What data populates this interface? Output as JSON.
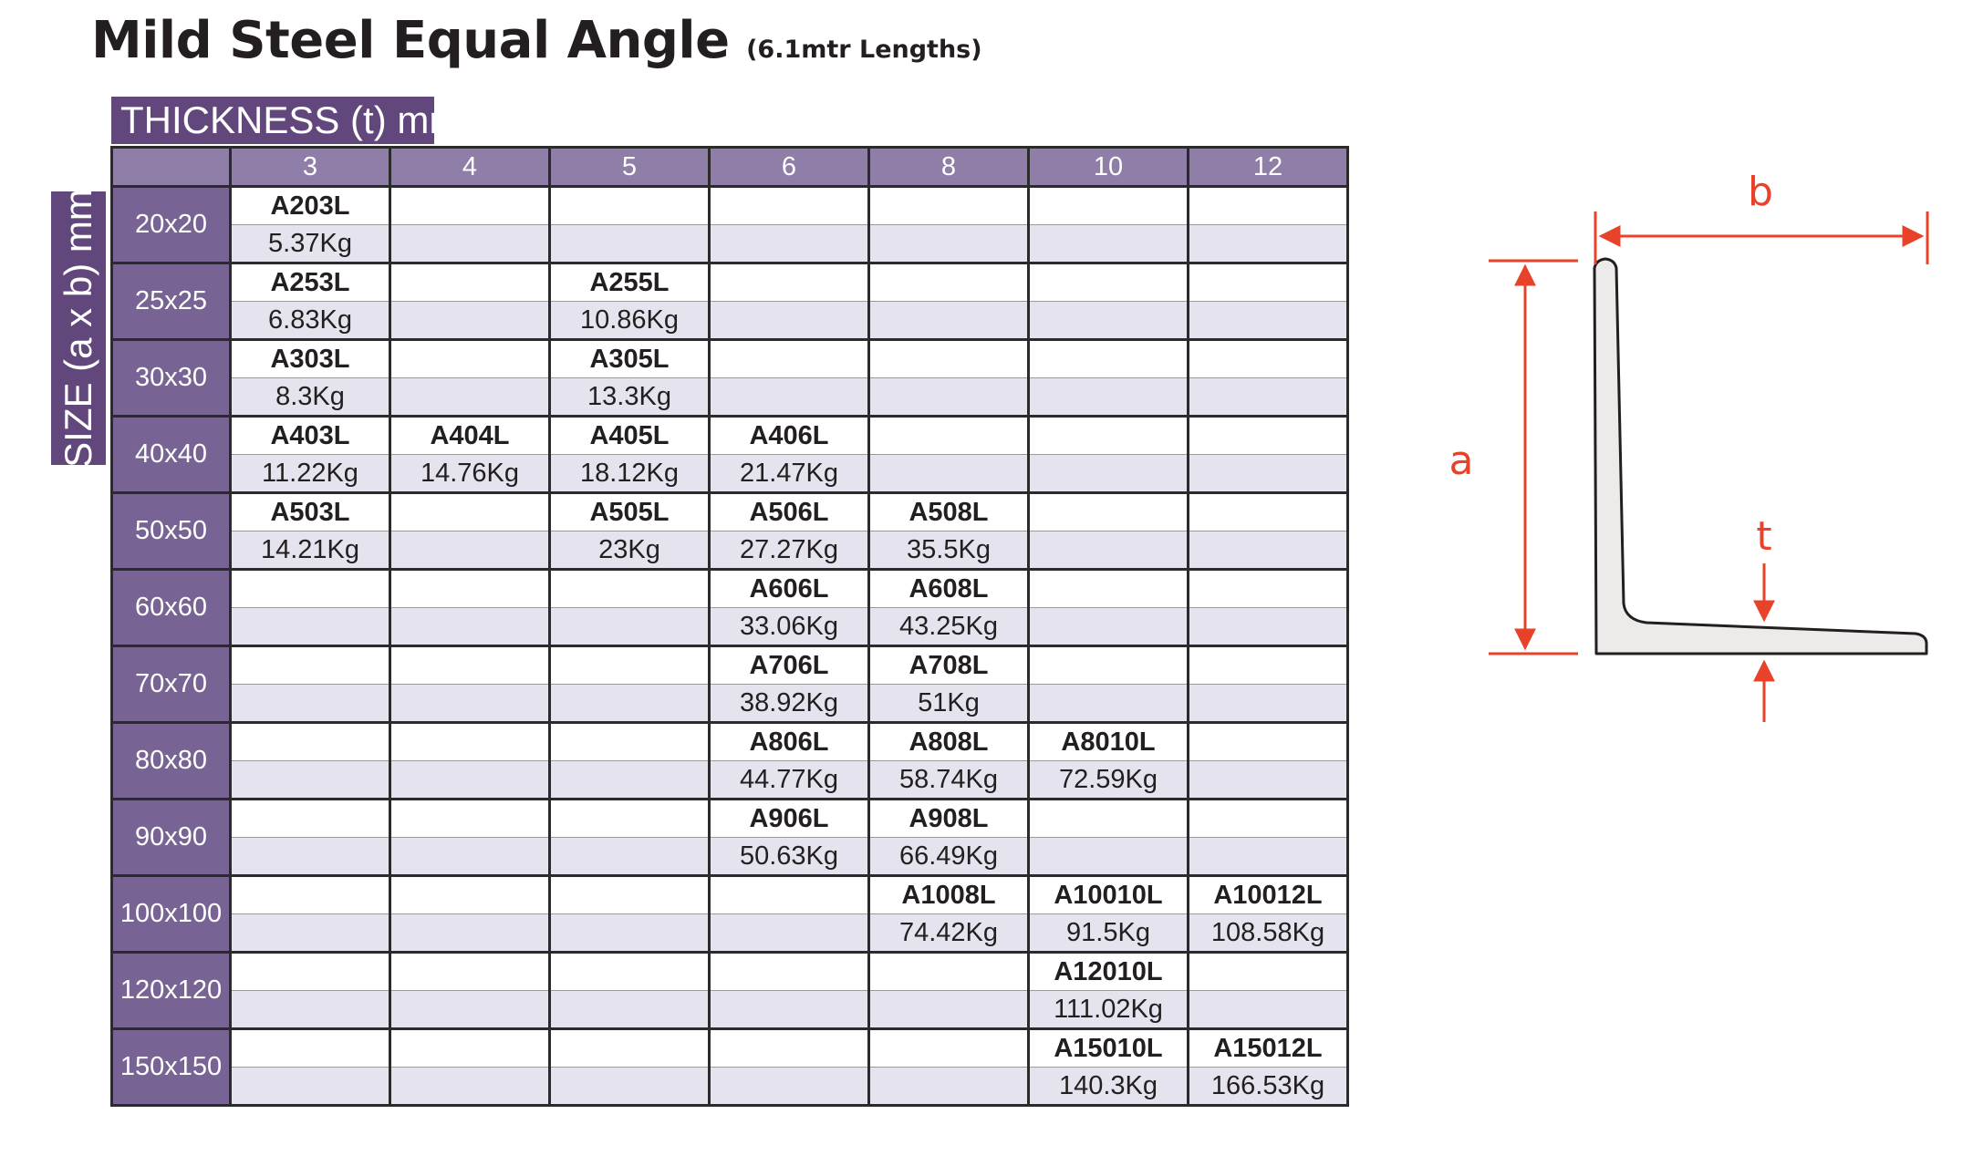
{
  "title": "Mild Steel Equal Angle",
  "subtitle": "(6.1mtr Lengths)",
  "thickness_label": "THICKNESS (t) mm",
  "size_label": "SIZE (a x b) mm",
  "thicknesses": [
    "3",
    "4",
    "5",
    "6",
    "8",
    "10",
    "12"
  ],
  "rows": [
    {
      "size": "20x20",
      "cells": [
        {
          "code": "A203L",
          "weight": "5.37Kg"
        },
        {
          "code": "",
          "weight": ""
        },
        {
          "code": "",
          "weight": ""
        },
        {
          "code": "",
          "weight": ""
        },
        {
          "code": "",
          "weight": ""
        },
        {
          "code": "",
          "weight": ""
        },
        {
          "code": "",
          "weight": ""
        }
      ]
    },
    {
      "size": "25x25",
      "cells": [
        {
          "code": "A253L",
          "weight": "6.83Kg"
        },
        {
          "code": "",
          "weight": ""
        },
        {
          "code": "A255L",
          "weight": "10.86Kg"
        },
        {
          "code": "",
          "weight": ""
        },
        {
          "code": "",
          "weight": ""
        },
        {
          "code": "",
          "weight": ""
        },
        {
          "code": "",
          "weight": ""
        }
      ]
    },
    {
      "size": "30x30",
      "cells": [
        {
          "code": "A303L",
          "weight": "8.3Kg"
        },
        {
          "code": "",
          "weight": ""
        },
        {
          "code": "A305L",
          "weight": "13.3Kg"
        },
        {
          "code": "",
          "weight": ""
        },
        {
          "code": "",
          "weight": ""
        },
        {
          "code": "",
          "weight": ""
        },
        {
          "code": "",
          "weight": ""
        }
      ]
    },
    {
      "size": "40x40",
      "cells": [
        {
          "code": "A403L",
          "weight": "11.22Kg"
        },
        {
          "code": "A404L",
          "weight": "14.76Kg"
        },
        {
          "code": "A405L",
          "weight": "18.12Kg"
        },
        {
          "code": "A406L",
          "weight": "21.47Kg"
        },
        {
          "code": "",
          "weight": ""
        },
        {
          "code": "",
          "weight": ""
        },
        {
          "code": "",
          "weight": ""
        }
      ]
    },
    {
      "size": "50x50",
      "cells": [
        {
          "code": "A503L",
          "weight": "14.21Kg"
        },
        {
          "code": "",
          "weight": ""
        },
        {
          "code": "A505L",
          "weight": "23Kg"
        },
        {
          "code": "A506L",
          "weight": "27.27Kg"
        },
        {
          "code": "A508L",
          "weight": "35.5Kg"
        },
        {
          "code": "",
          "weight": ""
        },
        {
          "code": "",
          "weight": ""
        }
      ]
    },
    {
      "size": "60x60",
      "cells": [
        {
          "code": "",
          "weight": ""
        },
        {
          "code": "",
          "weight": ""
        },
        {
          "code": "",
          "weight": ""
        },
        {
          "code": "A606L",
          "weight": "33.06Kg"
        },
        {
          "code": "A608L",
          "weight": "43.25Kg"
        },
        {
          "code": "",
          "weight": ""
        },
        {
          "code": "",
          "weight": ""
        }
      ]
    },
    {
      "size": "70x70",
      "cells": [
        {
          "code": "",
          "weight": ""
        },
        {
          "code": "",
          "weight": ""
        },
        {
          "code": "",
          "weight": ""
        },
        {
          "code": "A706L",
          "weight": "38.92Kg"
        },
        {
          "code": "A708L",
          "weight": "51Kg"
        },
        {
          "code": "",
          "weight": ""
        },
        {
          "code": "",
          "weight": ""
        }
      ]
    },
    {
      "size": "80x80",
      "cells": [
        {
          "code": "",
          "weight": ""
        },
        {
          "code": "",
          "weight": ""
        },
        {
          "code": "",
          "weight": ""
        },
        {
          "code": "A806L",
          "weight": "44.77Kg"
        },
        {
          "code": "A808L",
          "weight": "58.74Kg"
        },
        {
          "code": "A8010L",
          "weight": "72.59Kg"
        },
        {
          "code": "",
          "weight": ""
        }
      ]
    },
    {
      "size": "90x90",
      "cells": [
        {
          "code": "",
          "weight": ""
        },
        {
          "code": "",
          "weight": ""
        },
        {
          "code": "",
          "weight": ""
        },
        {
          "code": "A906L",
          "weight": "50.63Kg"
        },
        {
          "code": "A908L",
          "weight": "66.49Kg"
        },
        {
          "code": "",
          "weight": ""
        },
        {
          "code": "",
          "weight": ""
        }
      ]
    },
    {
      "size": "100x100",
      "cells": [
        {
          "code": "",
          "weight": ""
        },
        {
          "code": "",
          "weight": ""
        },
        {
          "code": "",
          "weight": ""
        },
        {
          "code": "",
          "weight": ""
        },
        {
          "code": "A1008L",
          "weight": "74.42Kg"
        },
        {
          "code": "A10010L",
          "weight": "91.5Kg"
        },
        {
          "code": "A10012L",
          "weight": "108.58Kg"
        }
      ]
    },
    {
      "size": "120x120",
      "cells": [
        {
          "code": "",
          "weight": ""
        },
        {
          "code": "",
          "weight": ""
        },
        {
          "code": "",
          "weight": ""
        },
        {
          "code": "",
          "weight": ""
        },
        {
          "code": "",
          "weight": ""
        },
        {
          "code": "A12010L",
          "weight": "111.02Kg"
        },
        {
          "code": "",
          "weight": ""
        }
      ]
    },
    {
      "size": "150x150",
      "cells": [
        {
          "code": "",
          "weight": ""
        },
        {
          "code": "",
          "weight": ""
        },
        {
          "code": "",
          "weight": ""
        },
        {
          "code": "",
          "weight": ""
        },
        {
          "code": "",
          "weight": ""
        },
        {
          "code": "A15010L",
          "weight": "140.3Kg"
        },
        {
          "code": "A15012L",
          "weight": "166.53Kg"
        }
      ]
    }
  ],
  "diagram": {
    "label_a": "a",
    "label_b": "b",
    "label_t": "t",
    "accent_color": "#e8432a",
    "header_color": "#62477c"
  }
}
